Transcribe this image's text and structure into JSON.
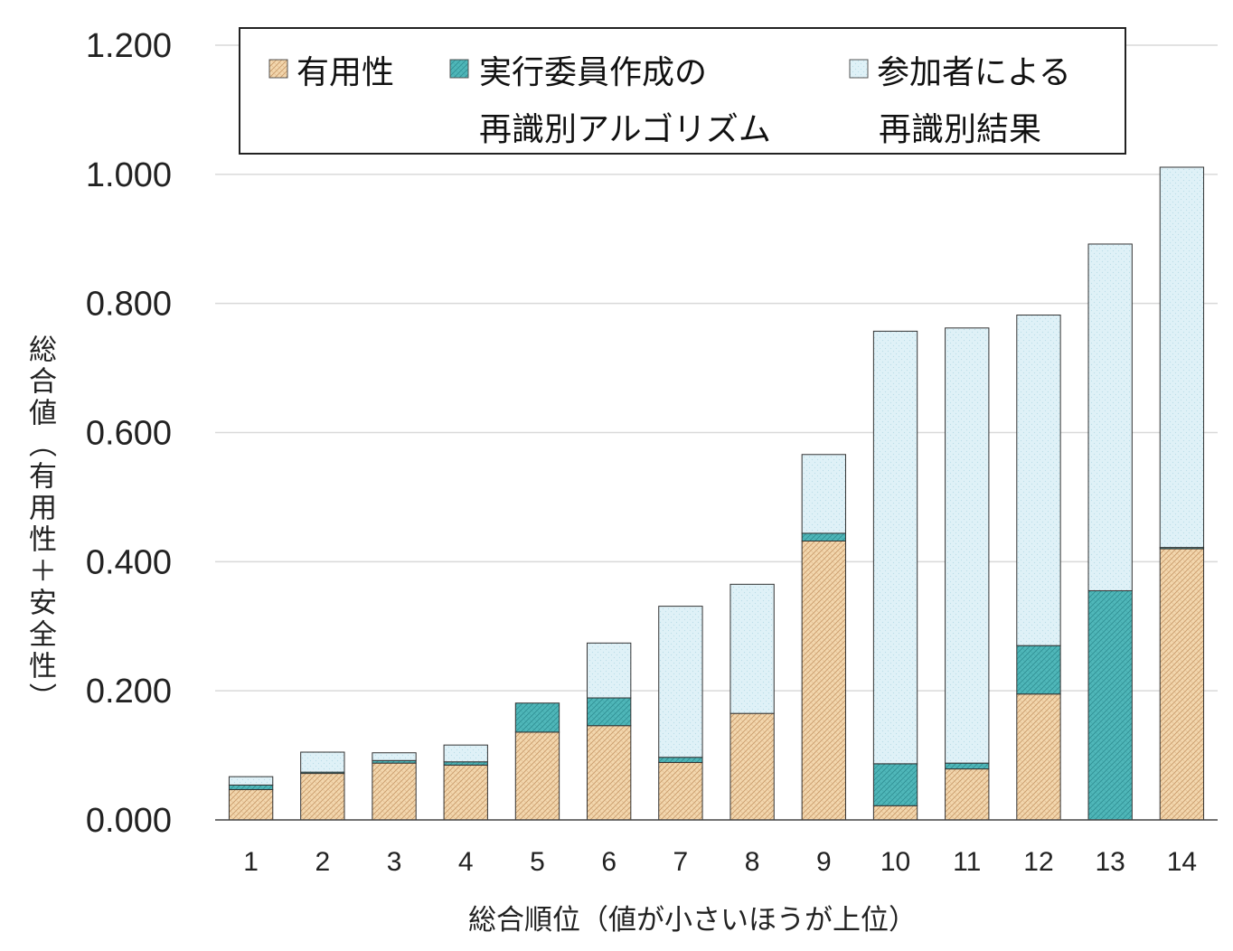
{
  "chart_data": {
    "type": "bar",
    "stacked": true,
    "categories": [
      "1",
      "2",
      "3",
      "4",
      "5",
      "6",
      "7",
      "8",
      "9",
      "10",
      "11",
      "12",
      "13",
      "14"
    ],
    "series": [
      {
        "name": "有用性",
        "color": "#f3d7ae",
        "values": [
          0.047,
          0.072,
          0.088,
          0.085,
          0.136,
          0.146,
          0.089,
          0.165,
          0.432,
          0.022,
          0.079,
          0.195,
          0.0,
          0.42
        ]
      },
      {
        "name": "実行委員作成の再識別アルゴリズム",
        "color": "#4fb7b9",
        "values": [
          0.007,
          0.002,
          0.004,
          0.005,
          0.045,
          0.043,
          0.008,
          0.0,
          0.012,
          0.065,
          0.009,
          0.075,
          0.355,
          0.002
        ]
      },
      {
        "name": "参加者による再識別結果",
        "color": "#dff1f7",
        "values": [
          0.013,
          0.031,
          0.012,
          0.026,
          0.0,
          0.085,
          0.234,
          0.2,
          0.122,
          0.67,
          0.674,
          0.512,
          0.537,
          0.589
        ]
      }
    ],
    "legend": [
      {
        "line1": "有用性",
        "line2": ""
      },
      {
        "line1": "実行委員作成の",
        "line2": "再識別アルゴリズム"
      },
      {
        "line1": "参加者による",
        "line2": "再識別結果"
      }
    ],
    "xlabel": "総合順位（値が小さいほうが上位）",
    "ylabel": "総合値（有用性＋安全性）",
    "ylim": [
      0,
      1.2
    ],
    "yticks": [
      "0.000",
      "0.200",
      "0.400",
      "0.600",
      "0.800",
      "1.000",
      "1.200"
    ],
    "grid": true,
    "legend_position": "top"
  }
}
